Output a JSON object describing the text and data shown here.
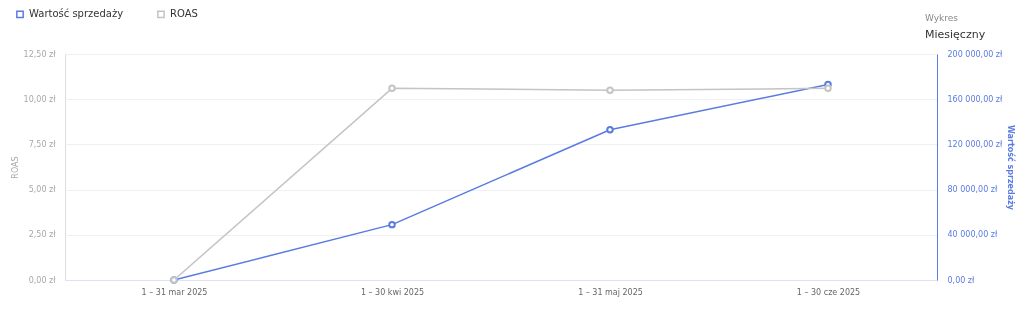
{
  "chart_data": {
    "type": "line",
    "ylabel": "ROAS",
    "y2label": "Wartość sprzedaży",
    "categories": [
      "1 – 31 mar 2025",
      "1 – 30 kwi 2025",
      "1 – 31 maj 2025",
      "1 – 30 cze 2025"
    ],
    "series": [
      {
        "name": "Wartość sprzedaży",
        "color": "#5a7be0",
        "axis": "y2",
        "values": [
          0,
          49000,
          133000,
          173000
        ]
      },
      {
        "name": "ROAS",
        "color": "#c4c4c4",
        "values": [
          0,
          10.6,
          10.5,
          10.6
        ]
      }
    ],
    "ylim": [
      0,
      12.5
    ],
    "yticks": [
      {
        "value": 0,
        "label": "0,00 zł"
      },
      {
        "value": 2.5,
        "label": "2,50 zł"
      },
      {
        "value": 5,
        "label": "5,00 zł"
      },
      {
        "value": 7.5,
        "label": "7,50 zł"
      },
      {
        "value": 10,
        "label": "10,00 zł"
      },
      {
        "value": 12.5,
        "label": "12,50 zł"
      }
    ],
    "y2lim": [
      0,
      200000
    ],
    "y2ticks": [
      {
        "value": 0,
        "label": "0,00 zł"
      },
      {
        "value": 40000,
        "label": "40 000,00 zł"
      },
      {
        "value": 80000,
        "label": "80 000,00 zł"
      },
      {
        "value": 120000,
        "label": "120 000,00 zł"
      },
      {
        "value": 160000,
        "label": "160 000,00 zł"
      },
      {
        "value": 200000,
        "label": "200 000,00 zł"
      }
    ],
    "annotations": [
      "Wykres",
      "Miesięczny"
    ],
    "grid": "y",
    "legend": "top left",
    "marker": "circle",
    "line_style": "solid"
  }
}
